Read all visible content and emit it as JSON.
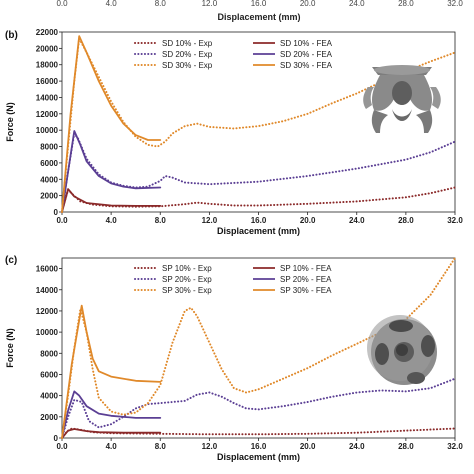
{
  "top_strip": {
    "xlabel": "Displacement (mm)",
    "ticks": [
      "0.0",
      "4.0",
      "8.0",
      "12.0",
      "16.0",
      "20.0",
      "24.0",
      "28.0",
      "32.0"
    ]
  },
  "chart_data": [
    {
      "panel_label": "(b)",
      "type": "line",
      "xlabel": "Displacement (mm)",
      "ylabel": "Force (N)",
      "xlim": [
        0,
        32
      ],
      "ylim": [
        0,
        22000
      ],
      "xticks": [
        0,
        4,
        8,
        12,
        16,
        20,
        24,
        28,
        32
      ],
      "xtick_labels": [
        "0.0",
        "4.0",
        "8.0",
        "12.0",
        "16.0",
        "20.0",
        "24.0",
        "28.0",
        "32.0"
      ],
      "yticks": [
        0,
        2000,
        4000,
        6000,
        8000,
        10000,
        12000,
        14000,
        16000,
        18000,
        20000,
        22000
      ],
      "ytick_labels": [
        "0",
        "2000",
        "4000",
        "6000",
        "8000",
        "10000",
        "12000",
        "14000",
        "16000",
        "18000",
        "20000",
        "22000"
      ],
      "legend_position": "top-left",
      "series": [
        {
          "name": "SD 10% - Exp",
          "color": "#8b2a2a",
          "style": "dotted",
          "points": [
            [
              0,
              0
            ],
            [
              0.25,
              1500
            ],
            [
              0.5,
              2700
            ],
            [
              0.9,
              2100
            ],
            [
              1.5,
              1300
            ],
            [
              2.5,
              900
            ],
            [
              4,
              700
            ],
            [
              6,
              650
            ],
            [
              8,
              700
            ],
            [
              10,
              950
            ],
            [
              11,
              1150
            ],
            [
              12,
              1000
            ],
            [
              14,
              800
            ],
            [
              16,
              800
            ],
            [
              20,
              1000
            ],
            [
              24,
              1300
            ],
            [
              28,
              1800
            ],
            [
              30,
              2300
            ],
            [
              32,
              3000
            ]
          ]
        },
        {
          "name": "SD 10% - FEA",
          "color": "#8b2a2a",
          "style": "solid",
          "points": [
            [
              0,
              0
            ],
            [
              0.5,
              2800
            ],
            [
              1,
              1900
            ],
            [
              2,
              1100
            ],
            [
              4,
              800
            ],
            [
              6,
              750
            ],
            [
              8,
              750
            ]
          ]
        },
        {
          "name": "SD 20% - Exp",
          "color": "#5b3f94",
          "style": "dotted",
          "points": [
            [
              0,
              0
            ],
            [
              0.5,
              5000
            ],
            [
              1,
              9600
            ],
            [
              1.3,
              9000
            ],
            [
              2,
              6500
            ],
            [
              3,
              4600
            ],
            [
              4,
              3600
            ],
            [
              5,
              3200
            ],
            [
              6,
              3000
            ],
            [
              7,
              3100
            ],
            [
              8,
              3800
            ],
            [
              8.4,
              4400
            ],
            [
              9,
              4200
            ],
            [
              10,
              3600
            ],
            [
              12,
              3400
            ],
            [
              16,
              3700
            ],
            [
              20,
              4400
            ],
            [
              24,
              5300
            ],
            [
              28,
              6400
            ],
            [
              30,
              7300
            ],
            [
              32,
              8600
            ]
          ]
        },
        {
          "name": "SD 20% - FEA",
          "color": "#5b3f94",
          "style": "solid",
          "points": [
            [
              0,
              0
            ],
            [
              0.6,
              6000
            ],
            [
              1,
              9900
            ],
            [
              1.5,
              8200
            ],
            [
              2,
              6200
            ],
            [
              3,
              4400
            ],
            [
              4,
              3500
            ],
            [
              5,
              3100
            ],
            [
              6,
              2900
            ],
            [
              8,
              3000
            ]
          ]
        },
        {
          "name": "SD 30% - Exp",
          "color": "#e0892a",
          "style": "dotted",
          "points": [
            [
              0,
              0
            ],
            [
              0.5,
              8000
            ],
            [
              1,
              16000
            ],
            [
              1.4,
              21200
            ],
            [
              2,
              19500
            ],
            [
              3,
              16500
            ],
            [
              4,
              13500
            ],
            [
              5,
              11000
            ],
            [
              6,
              9200
            ],
            [
              7,
              8200
            ],
            [
              7.8,
              8000
            ],
            [
              8.4,
              8600
            ],
            [
              9,
              9600
            ],
            [
              10,
              10500
            ],
            [
              11,
              10800
            ],
            [
              12,
              10400
            ],
            [
              14,
              10200
            ],
            [
              16,
              10500
            ],
            [
              18,
              11100
            ],
            [
              20,
              12000
            ],
            [
              22,
              13300
            ],
            [
              24,
              14500
            ],
            [
              26,
              15900
            ],
            [
              28,
              17200
            ],
            [
              30,
              18400
            ],
            [
              32,
              19500
            ]
          ]
        },
        {
          "name": "SD 30% - FEA",
          "color": "#e0892a",
          "style": "solid",
          "points": [
            [
              0,
              0
            ],
            [
              0.7,
              12000
            ],
            [
              1.4,
              21500
            ],
            [
              2,
              19500
            ],
            [
              3,
              16000
            ],
            [
              4,
              13000
            ],
            [
              5,
              10800
            ],
            [
              6,
              9400
            ],
            [
              7,
              8800
            ],
            [
              8,
              8800
            ]
          ]
        }
      ]
    },
    {
      "panel_label": "(c)",
      "type": "line",
      "xlabel": "Displacement (mm)",
      "ylabel": "Force (N)",
      "xlim": [
        0,
        32
      ],
      "ylim": [
        0,
        17000
      ],
      "xticks": [
        0,
        4,
        8,
        12,
        16,
        20,
        24,
        28,
        32
      ],
      "xtick_labels": [
        "0.0",
        "4.0",
        "8.0",
        "12.0",
        "16.0",
        "20.0",
        "24.0",
        "28.0",
        "32.0"
      ],
      "yticks": [
        0,
        2000,
        4000,
        6000,
        8000,
        10000,
        12000,
        14000,
        16000
      ],
      "ytick_labels": [
        "0",
        "2000",
        "4000",
        "6000",
        "8000",
        "10000",
        "12000",
        "14000",
        "16000"
      ],
      "legend_position": "top-left",
      "series": [
        {
          "name": "SP 10% - Exp",
          "color": "#8b2a2a",
          "style": "dotted",
          "points": [
            [
              0,
              0
            ],
            [
              0.4,
              600
            ],
            [
              0.8,
              900
            ],
            [
              1.4,
              800
            ],
            [
              2.5,
              550
            ],
            [
              4,
              450
            ],
            [
              8,
              400
            ],
            [
              12,
              350
            ],
            [
              16,
              350
            ],
            [
              20,
              400
            ],
            [
              24,
              500
            ],
            [
              28,
              700
            ],
            [
              32,
              900
            ]
          ]
        },
        {
          "name": "SP 10% - FEA",
          "color": "#8b2a2a",
          "style": "solid",
          "points": [
            [
              0,
              0
            ],
            [
              0.5,
              700
            ],
            [
              1,
              850
            ],
            [
              2,
              650
            ],
            [
              3,
              550
            ],
            [
              5,
              500
            ],
            [
              8,
              500
            ]
          ]
        },
        {
          "name": "SP 20% - Exp",
          "color": "#5b3f94",
          "style": "dotted",
          "points": [
            [
              0,
              0
            ],
            [
              0.5,
              2000
            ],
            [
              1,
              3600
            ],
            [
              1.6,
              3400
            ],
            [
              2.2,
              1600
            ],
            [
              3,
              1000
            ],
            [
              4,
              1300
            ],
            [
              5,
              2000
            ],
            [
              6,
              2800
            ],
            [
              7,
              3200
            ],
            [
              8,
              3300
            ],
            [
              9,
              3400
            ],
            [
              10,
              3500
            ],
            [
              11,
              4100
            ],
            [
              12,
              4300
            ],
            [
              13,
              3900
            ],
            [
              14,
              3300
            ],
            [
              15,
              2800
            ],
            [
              16,
              2700
            ],
            [
              18,
              3000
            ],
            [
              20,
              3400
            ],
            [
              22,
              3900
            ],
            [
              24,
              4300
            ],
            [
              26,
              4500
            ],
            [
              28,
              4400
            ],
            [
              30,
              4700
            ],
            [
              32,
              5600
            ]
          ]
        },
        {
          "name": "SP 20% - FEA",
          "color": "#5b3f94",
          "style": "solid",
          "points": [
            [
              0,
              0
            ],
            [
              0.5,
              2600
            ],
            [
              1,
              4400
            ],
            [
              1.4,
              4000
            ],
            [
              2,
              3000
            ],
            [
              3,
              2300
            ],
            [
              4,
              2100
            ],
            [
              6,
              1900
            ],
            [
              8,
              1900
            ]
          ]
        },
        {
          "name": "SP 30% - Exp",
          "color": "#e0892a",
          "style": "dotted",
          "points": [
            [
              0,
              0
            ],
            [
              0.5,
              4000
            ],
            [
              1,
              8500
            ],
            [
              1.5,
              12200
            ],
            [
              2,
              10000
            ],
            [
              2.5,
              6500
            ],
            [
              3,
              3800
            ],
            [
              4,
              2500
            ],
            [
              5,
              2200
            ],
            [
              6,
              2400
            ],
            [
              7,
              3300
            ],
            [
              8,
              5000
            ],
            [
              9,
              9000
            ],
            [
              10,
              12000
            ],
            [
              10.5,
              12300
            ],
            [
              11,
              11500
            ],
            [
              12,
              9000
            ],
            [
              13,
              6500
            ],
            [
              14,
              4700
            ],
            [
              15,
              4300
            ],
            [
              16,
              4600
            ],
            [
              18,
              5600
            ],
            [
              20,
              6600
            ],
            [
              22,
              7800
            ],
            [
              24,
              8900
            ],
            [
              26,
              10000
            ],
            [
              28,
              11200
            ],
            [
              30,
              13500
            ],
            [
              32,
              17000
            ]
          ]
        },
        {
          "name": "SP 30% - FEA",
          "color": "#e0892a",
          "style": "solid",
          "points": [
            [
              0,
              0
            ],
            [
              0.8,
              7000
            ],
            [
              1.6,
              12500
            ],
            [
              2,
              10000
            ],
            [
              2.5,
              7500
            ],
            [
              3,
              6300
            ],
            [
              4,
              5800
            ],
            [
              6,
              5400
            ],
            [
              8,
              5300
            ]
          ]
        }
      ]
    }
  ]
}
